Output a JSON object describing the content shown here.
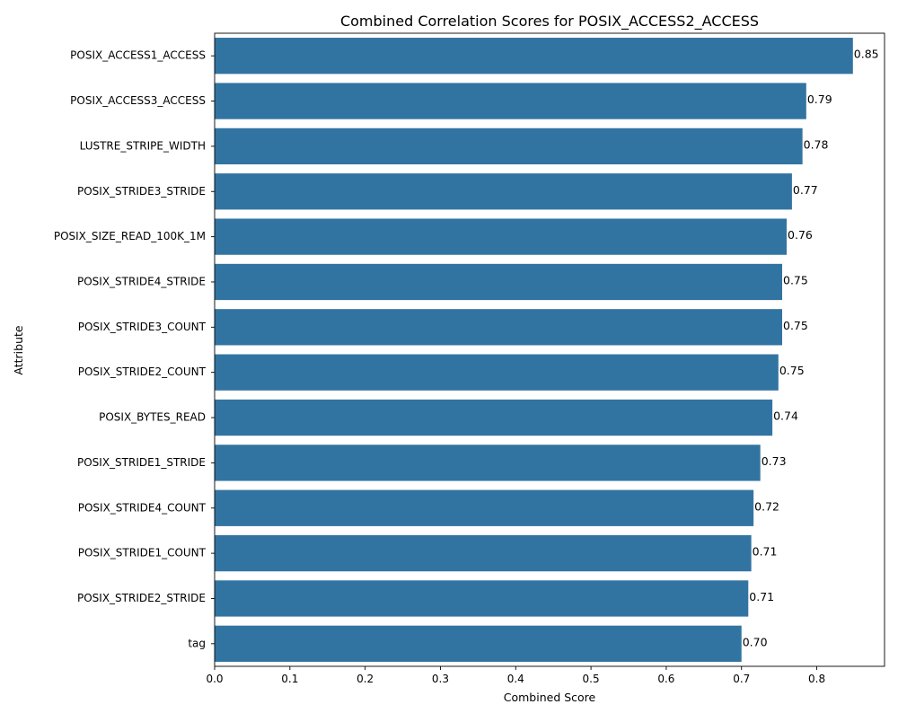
{
  "chart_data": {
    "type": "bar",
    "orientation": "horizontal",
    "title": "Combined Correlation Scores for POSIX_ACCESS2_ACCESS",
    "xlabel": "Combined Score",
    "ylabel": "Attribute",
    "xlim": [
      0,
      0.89
    ],
    "xticks": [
      "0.0",
      "0.1",
      "0.2",
      "0.3",
      "0.4",
      "0.5",
      "0.6",
      "0.7",
      "0.8"
    ],
    "grid": false,
    "bar_color": "#3274a1",
    "categories": [
      "POSIX_ACCESS1_ACCESS",
      "POSIX_ACCESS3_ACCESS",
      "LUSTRE_STRIPE_WIDTH",
      "POSIX_STRIDE3_STRIDE",
      "POSIX_SIZE_READ_100K_1M",
      "POSIX_STRIDE4_STRIDE",
      "POSIX_STRIDE3_COUNT",
      "POSIX_STRIDE2_COUNT",
      "POSIX_BYTES_READ",
      "POSIX_STRIDE1_STRIDE",
      "POSIX_STRIDE4_COUNT",
      "POSIX_STRIDE1_COUNT",
      "POSIX_STRIDE2_STRIDE",
      "tag"
    ],
    "values": [
      0.848,
      0.786,
      0.781,
      0.767,
      0.76,
      0.754,
      0.754,
      0.749,
      0.741,
      0.725,
      0.716,
      0.713,
      0.709,
      0.7
    ],
    "data_labels": [
      "0.85",
      "0.79",
      "0.78",
      "0.77",
      "0.76",
      "0.75",
      "0.75",
      "0.75",
      "0.74",
      "0.73",
      "0.72",
      "0.71",
      "0.71",
      "0.70"
    ]
  }
}
